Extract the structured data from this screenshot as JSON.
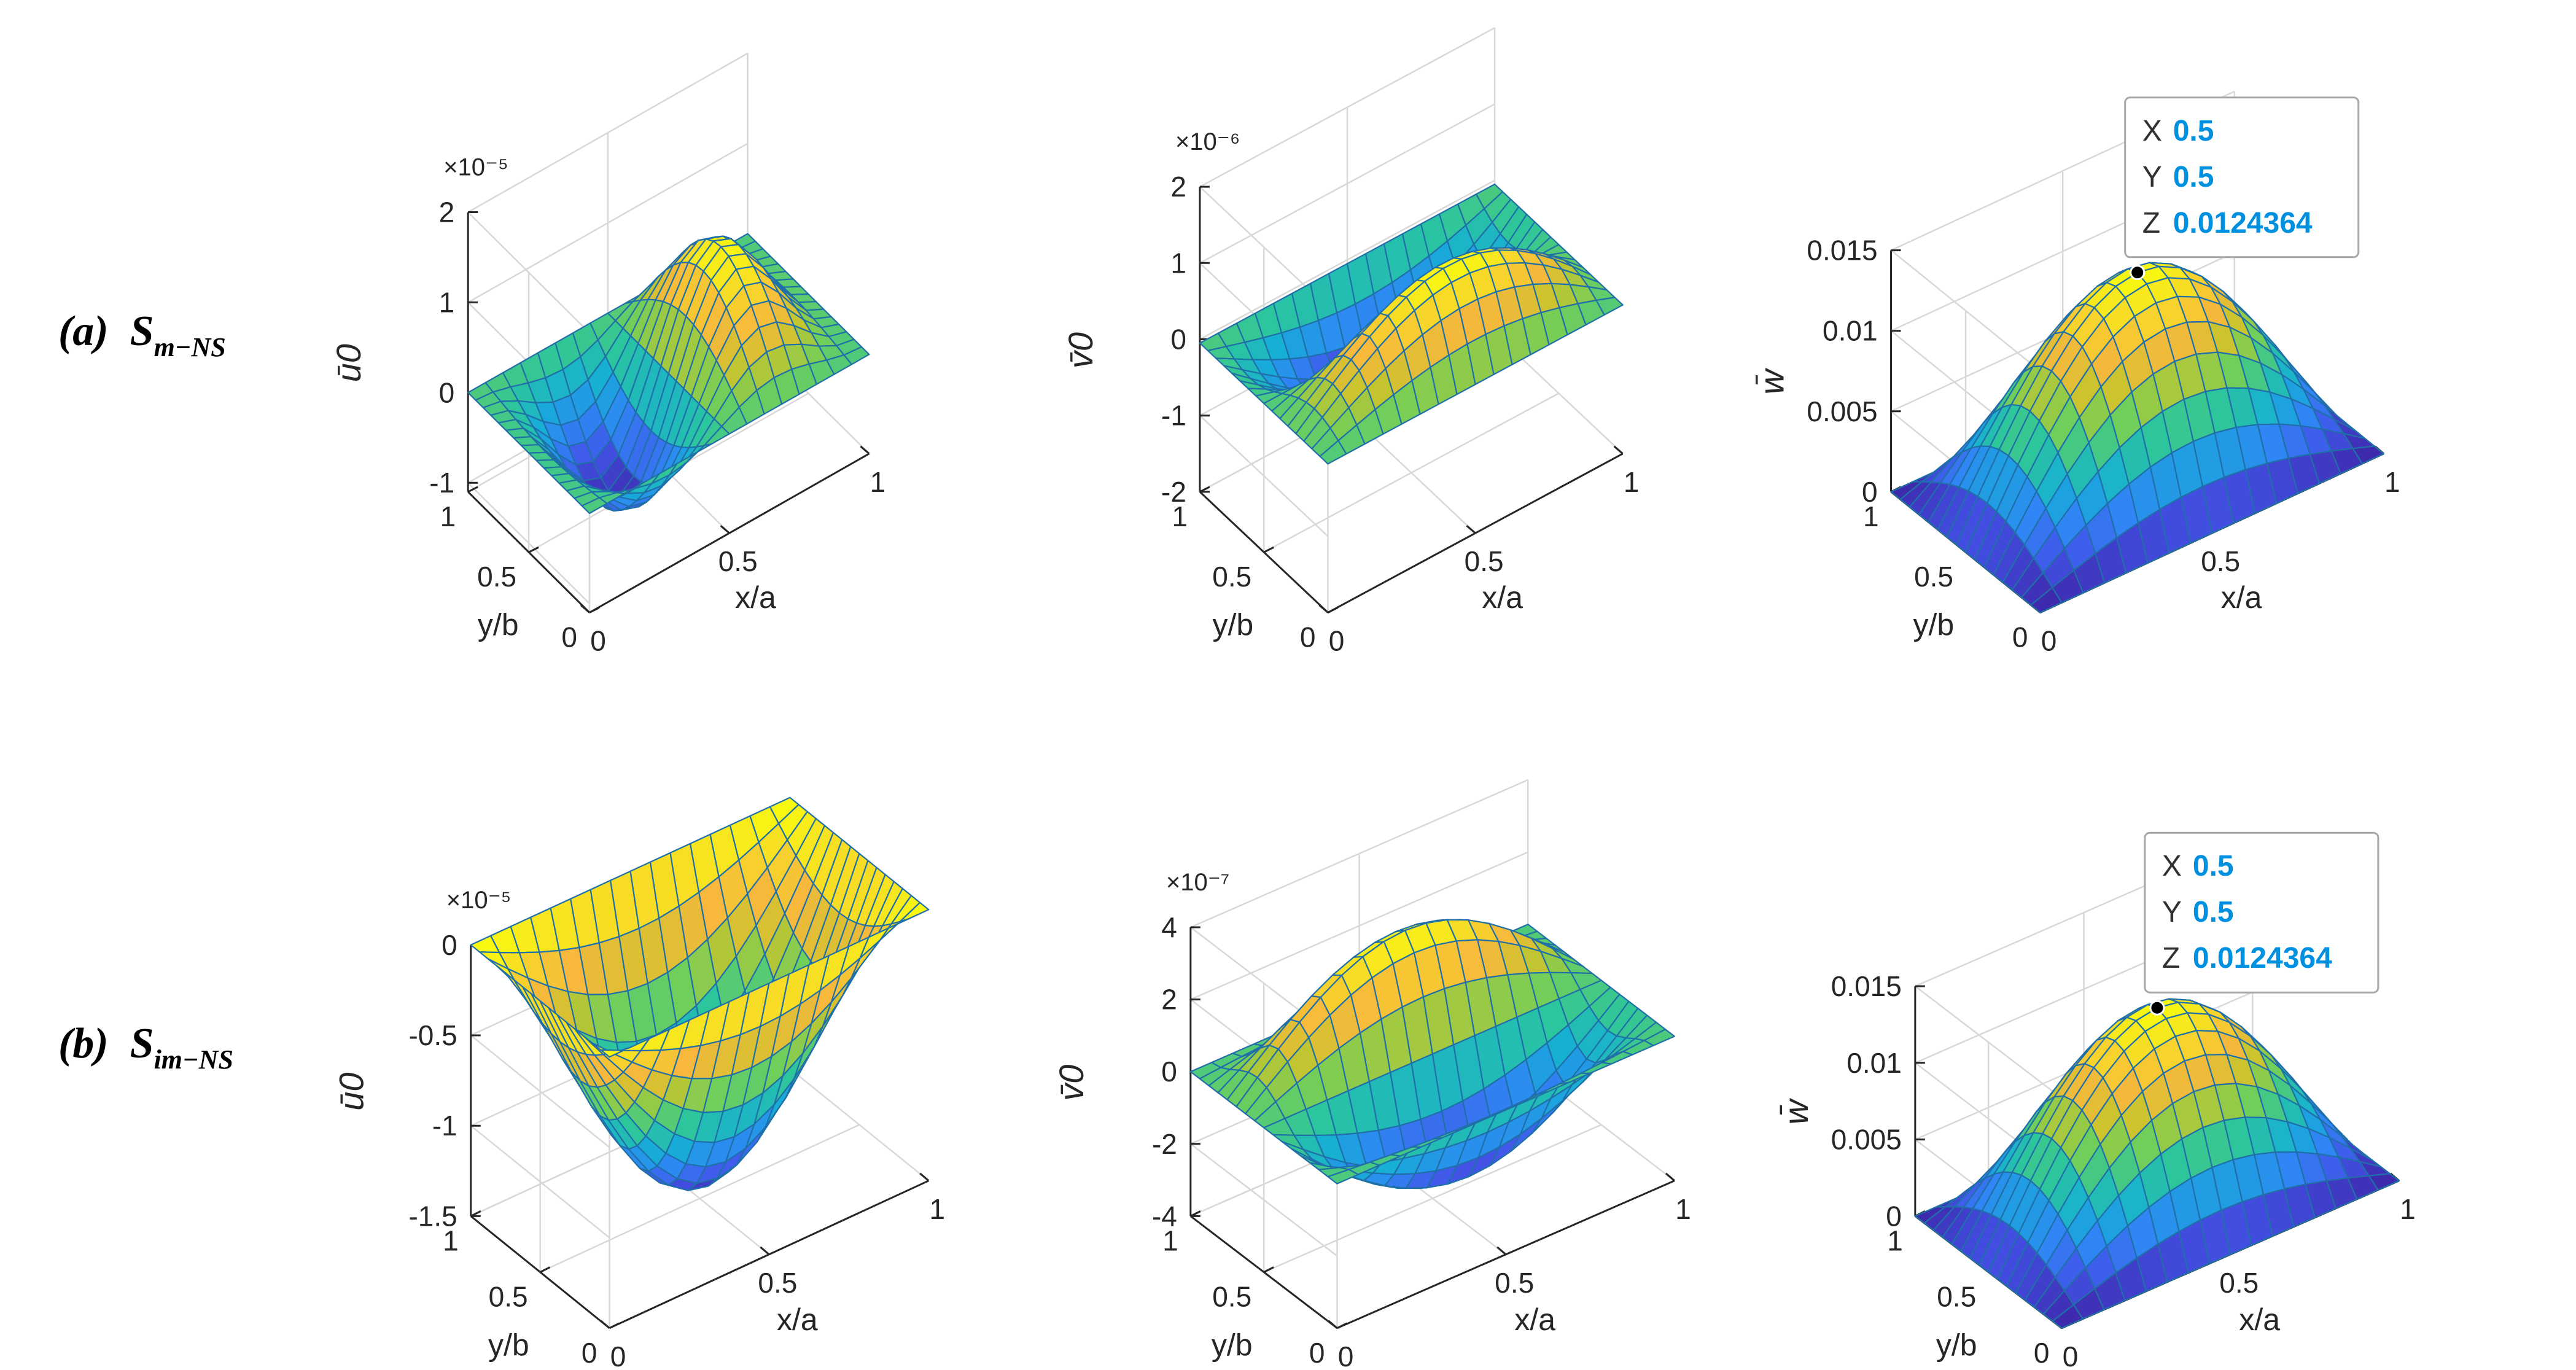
{
  "row_labels": [
    {
      "tag": "(a)",
      "name": "S",
      "sub": "m−NS"
    },
    {
      "tag": "(b)",
      "name": "S",
      "sub": "im−NS"
    }
  ],
  "colormap": [
    "#3e26a8",
    "#4254e8",
    "#2f86f4",
    "#16aed6",
    "#2bc59d",
    "#71ce5a",
    "#c8c42d",
    "#f7b83c",
    "#f8d72a",
    "#f9fb0e"
  ],
  "edge_color": "#1f6fa8",
  "datatip_colors": {
    "value": "#0090e0",
    "dot": "#000000"
  },
  "chart_data": [
    {
      "type": "surface",
      "row": "(a)",
      "title": "",
      "xlabel": "x/a",
      "ylabel": "y/b",
      "zlabel": "ū0",
      "x_ticks": [
        "0",
        "0.5",
        "1"
      ],
      "y_ticks": [
        "0",
        "0.5",
        "1"
      ],
      "z_ticks": [
        "-1",
        "0",
        "1",
        "2"
      ],
      "z_ticks_val": [
        -1,
        0,
        1,
        2
      ],
      "zlim": [
        -1.1,
        2
      ],
      "exponent": "×10⁻⁵",
      "field": "ua",
      "grid": [
        16,
        16
      ],
      "x_range": [
        0,
        1
      ],
      "y_range": [
        0,
        1
      ],
      "view": {
        "z_min": 0.2,
        "z_max": 0.64,
        "ext": -1
      }
    },
    {
      "type": "surface",
      "row": "(a)",
      "title": "",
      "xlabel": "x/a",
      "ylabel": "y/b",
      "zlabel": "v̄0",
      "x_ticks": [
        "0",
        "0.5",
        "1"
      ],
      "y_ticks": [
        "0",
        "0.5",
        "1"
      ],
      "z_ticks": [
        "-2",
        "-1",
        "0",
        "1",
        "2"
      ],
      "z_ticks_val": [
        -2,
        -1,
        0,
        1,
        2
      ],
      "zlim": [
        -2,
        2
      ],
      "exponent": "×10⁻⁶",
      "field": "va",
      "grid": [
        16,
        16
      ],
      "x_range": [
        0,
        1
      ],
      "y_range": [
        0,
        1
      ],
      "view": {
        "z_min": 0.2,
        "z_max": 0.68,
        "ext": -1
      }
    },
    {
      "type": "surface",
      "row": "(a)",
      "title": "",
      "xlabel": "x/a",
      "ylabel": "y/b",
      "zlabel": "w̄",
      "x_ticks": [
        "0",
        "0.5",
        "1"
      ],
      "y_ticks": [
        "0",
        "0.5",
        "1"
      ],
      "z_ticks": [
        "0",
        "0.005",
        "0.01",
        "0.015"
      ],
      "z_ticks_val": [
        0,
        0.005,
        0.01,
        0.015
      ],
      "zlim": [
        0,
        0.015
      ],
      "exponent": "",
      "field": "w",
      "peak": 0.0124364,
      "grid": [
        16,
        16
      ],
      "x_range": [
        0,
        1
      ],
      "y_range": [
        0,
        1
      ],
      "view": {
        "z_min": 0.32,
        "z_max": 0.7,
        "ext": 1
      },
      "datatip": {
        "X": "0.5",
        "Y": "0.5",
        "Z": "0.0124364",
        "x": 0.5,
        "y": 0.5,
        "z": 0.0124364
      }
    },
    {
      "type": "surface",
      "row": "(b)",
      "title": "",
      "xlabel": "x/a",
      "ylabel": "y/b",
      "zlabel": "ū0",
      "x_ticks": [
        "0",
        "0.5",
        "1"
      ],
      "y_ticks": [
        "0",
        "0.5",
        "1"
      ],
      "z_ticks": [
        "-1.5",
        "-1",
        "-0.5",
        "0"
      ],
      "z_ticks_val": [
        -1.5,
        -1,
        -0.5,
        0
      ],
      "zlim": [
        -1.5,
        0
      ],
      "exponent": "×10⁻⁵",
      "field": "ub",
      "grid": [
        16,
        16
      ],
      "x_range": [
        0,
        1
      ],
      "y_range": [
        0,
        1
      ],
      "view": {
        "z_min": 0.24,
        "z_max": 0.7,
        "ext": -1
      }
    },
    {
      "type": "surface",
      "row": "(b)",
      "title": "",
      "xlabel": "x/a",
      "ylabel": "y/b",
      "zlabel": "v̄0",
      "x_ticks": [
        "0",
        "0.5",
        "1"
      ],
      "y_ticks": [
        "0",
        "0.5",
        "1"
      ],
      "z_ticks": [
        "-4",
        "-2",
        "0",
        "2",
        "4"
      ],
      "z_ticks_val": [
        -4,
        -2,
        0,
        2,
        4
      ],
      "zlim": [
        -4,
        4
      ],
      "exponent": "×10⁻⁷",
      "field": "vb",
      "grid": [
        16,
        16
      ],
      "x_range": [
        0,
        1
      ],
      "y_range": [
        0,
        1
      ],
      "view": {
        "z_min": 0.22,
        "z_max": 0.71,
        "ext": -1
      }
    },
    {
      "type": "surface",
      "row": "(b)",
      "title": "",
      "xlabel": "x/a",
      "ylabel": "y/b",
      "zlabel": "w̄",
      "x_ticks": [
        "0",
        "0.5",
        "1"
      ],
      "y_ticks": [
        "0",
        "0.5",
        "1"
      ],
      "z_ticks": [
        "0",
        "0.005",
        "0.01",
        "0.015"
      ],
      "z_ticks_val": [
        0,
        0.005,
        0.01,
        0.015
      ],
      "zlim": [
        0,
        0.015
      ],
      "exponent": "",
      "field": "w",
      "peak": 0.0124364,
      "grid": [
        16,
        16
      ],
      "x_range": [
        0,
        1
      ],
      "y_range": [
        0,
        1
      ],
      "view": {
        "z_min": 0.34,
        "z_max": 0.73,
        "ext": 1
      },
      "datatip": {
        "X": "0.5",
        "Y": "0.5",
        "Z": "0.0124364",
        "x": 0.5,
        "y": 0.5,
        "z": 0.0124364
      }
    }
  ]
}
